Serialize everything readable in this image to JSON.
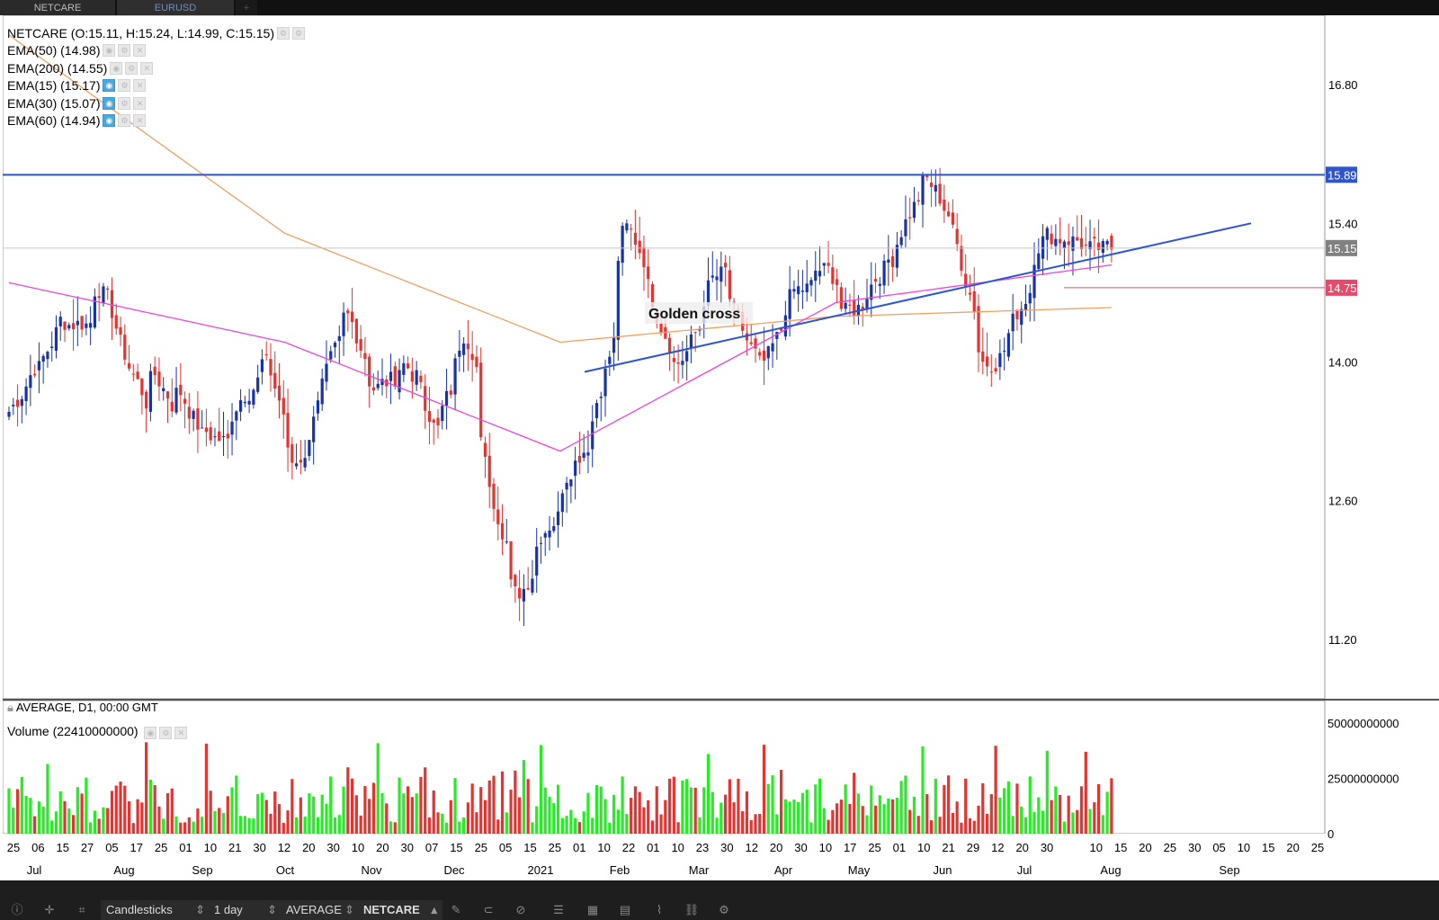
{
  "tabs": [
    {
      "label": "NETCARE"
    },
    {
      "label": "EURUSD"
    },
    {
      "label": "+"
    }
  ],
  "legend": {
    "ohlc": "NETCARE (O:15.11, H:15.24, L:14.99, C:15.15)",
    "ema50": "EMA(50) (14.98)",
    "ema200": "EMA(200) (14.55)",
    "ema15": "EMA(15) (15.17)",
    "ema30": "EMA(30) (15.07)",
    "ema60": "EMA(60) (14.94)",
    "footer": "AVERAGE, D1, 00:00 GMT",
    "volume": "Volume (22410000000)"
  },
  "annotation": "Golden cross",
  "toolbar": {
    "chart_type": "Candlesticks",
    "interval": "1 day",
    "price_source": "AVERAGE",
    "symbol": "NETCARE"
  },
  "colors": {
    "up": "#1733a8",
    "down": "#e8322f",
    "vol_up": "#22ee22",
    "vol_down": "#e8322f",
    "ema200": "#f0a060",
    "ema50": "#ee44dd",
    "trend": "#2d55cc",
    "resistance": "#2d55cc",
    "level": "#e84a6a"
  },
  "chart_data": {
    "type": "candlestick",
    "y_ticks": [
      16.8,
      15.4,
      14.0,
      12.6,
      11.2
    ],
    "vol_ticks": [
      "50000000000",
      "25000000000",
      "0"
    ],
    "price_labels": [
      {
        "value": 15.89,
        "text": "15.89",
        "color": "#2d55cc"
      },
      {
        "value": 15.15,
        "text": "15.15",
        "color": "#808080"
      },
      {
        "value": 14.75,
        "text": "14.75",
        "color": "#e84a6a"
      }
    ],
    "ylim": [
      10.6,
      17.5
    ],
    "x_ticks": [
      "25",
      "06",
      "15",
      "27",
      "05",
      "17",
      "25",
      "01",
      "10",
      "21",
      "30",
      "12",
      "20",
      "30",
      "10",
      "20",
      "30",
      "07",
      "15",
      "25",
      "05",
      "15",
      "25",
      "01",
      "10",
      "22",
      "01",
      "10",
      "23",
      "30",
      "12",
      "20",
      "30",
      "10",
      "17",
      "25",
      "01",
      "10",
      "21",
      "29",
      "12",
      "20",
      "30",
      "",
      "10",
      "15",
      "20",
      "25",
      "30",
      "05",
      "10",
      "15",
      "20",
      "25"
    ],
    "month_labels": [
      "Jul",
      "Aug",
      "Sep",
      "Oct",
      "Nov",
      "Dec",
      "2021",
      "Feb",
      "Mar",
      "Apr",
      "May",
      "Jun",
      "Jul",
      "Aug",
      "Sep"
    ],
    "anchors": [
      [
        13.5,
        14.2
      ],
      [
        13.9,
        14.7
      ],
      [
        14.4,
        13.8
      ],
      [
        15.0,
        14.3
      ],
      [
        14.1,
        13.1
      ],
      [
        14.0,
        13.2
      ],
      [
        13.8,
        13.1
      ],
      [
        13.3,
        12.7
      ],
      [
        13.6,
        13.5
      ],
      [
        14.2,
        13.9
      ],
      [
        12.8,
        12.9
      ],
      [
        13.7,
        13.8
      ],
      [
        14.6,
        14.2
      ],
      [
        13.7,
        13.6
      ],
      [
        14.1,
        14.2
      ],
      [
        13.2,
        13.0
      ],
      [
        14.5,
        14.4
      ],
      [
        13.0,
        12.9
      ],
      [
        11.4,
        11.7
      ],
      [
        12.3,
        12.1
      ],
      [
        12.9,
        13.0
      ],
      [
        13.5,
        13.3
      ],
      [
        15.5,
        15.3
      ],
      [
        14.7,
        14.3
      ],
      [
        13.9,
        14.0
      ],
      [
        14.8,
        15.3
      ],
      [
        14.5,
        14.2
      ],
      [
        13.8,
        14.1
      ],
      [
        14.7,
        14.5
      ],
      [
        15.0,
        15.2
      ],
      [
        14.4,
        14.5
      ],
      [
        14.8,
        14.9
      ],
      [
        15.3,
        15.6
      ],
      [
        15.9,
        15.6
      ],
      [
        15.3,
        14.9
      ],
      [
        13.9,
        14.0
      ],
      [
        14.3,
        14.4
      ],
      [
        15.3,
        15.2
      ],
      [
        15.3,
        15.2
      ],
      [
        15.1,
        15.15
      ]
    ],
    "ema_ranges": {
      "ema200": [
        17.3,
        15.3,
        14.2,
        14.46,
        14.55
      ],
      "ema50": [
        14.8,
        14.2,
        13.1,
        14.6,
        14.98
      ]
    },
    "trendline": [
      [
        13.9
      ],
      [
        15.4
      ]
    ],
    "volume_range": [
      0,
      56000000000
    ]
  }
}
